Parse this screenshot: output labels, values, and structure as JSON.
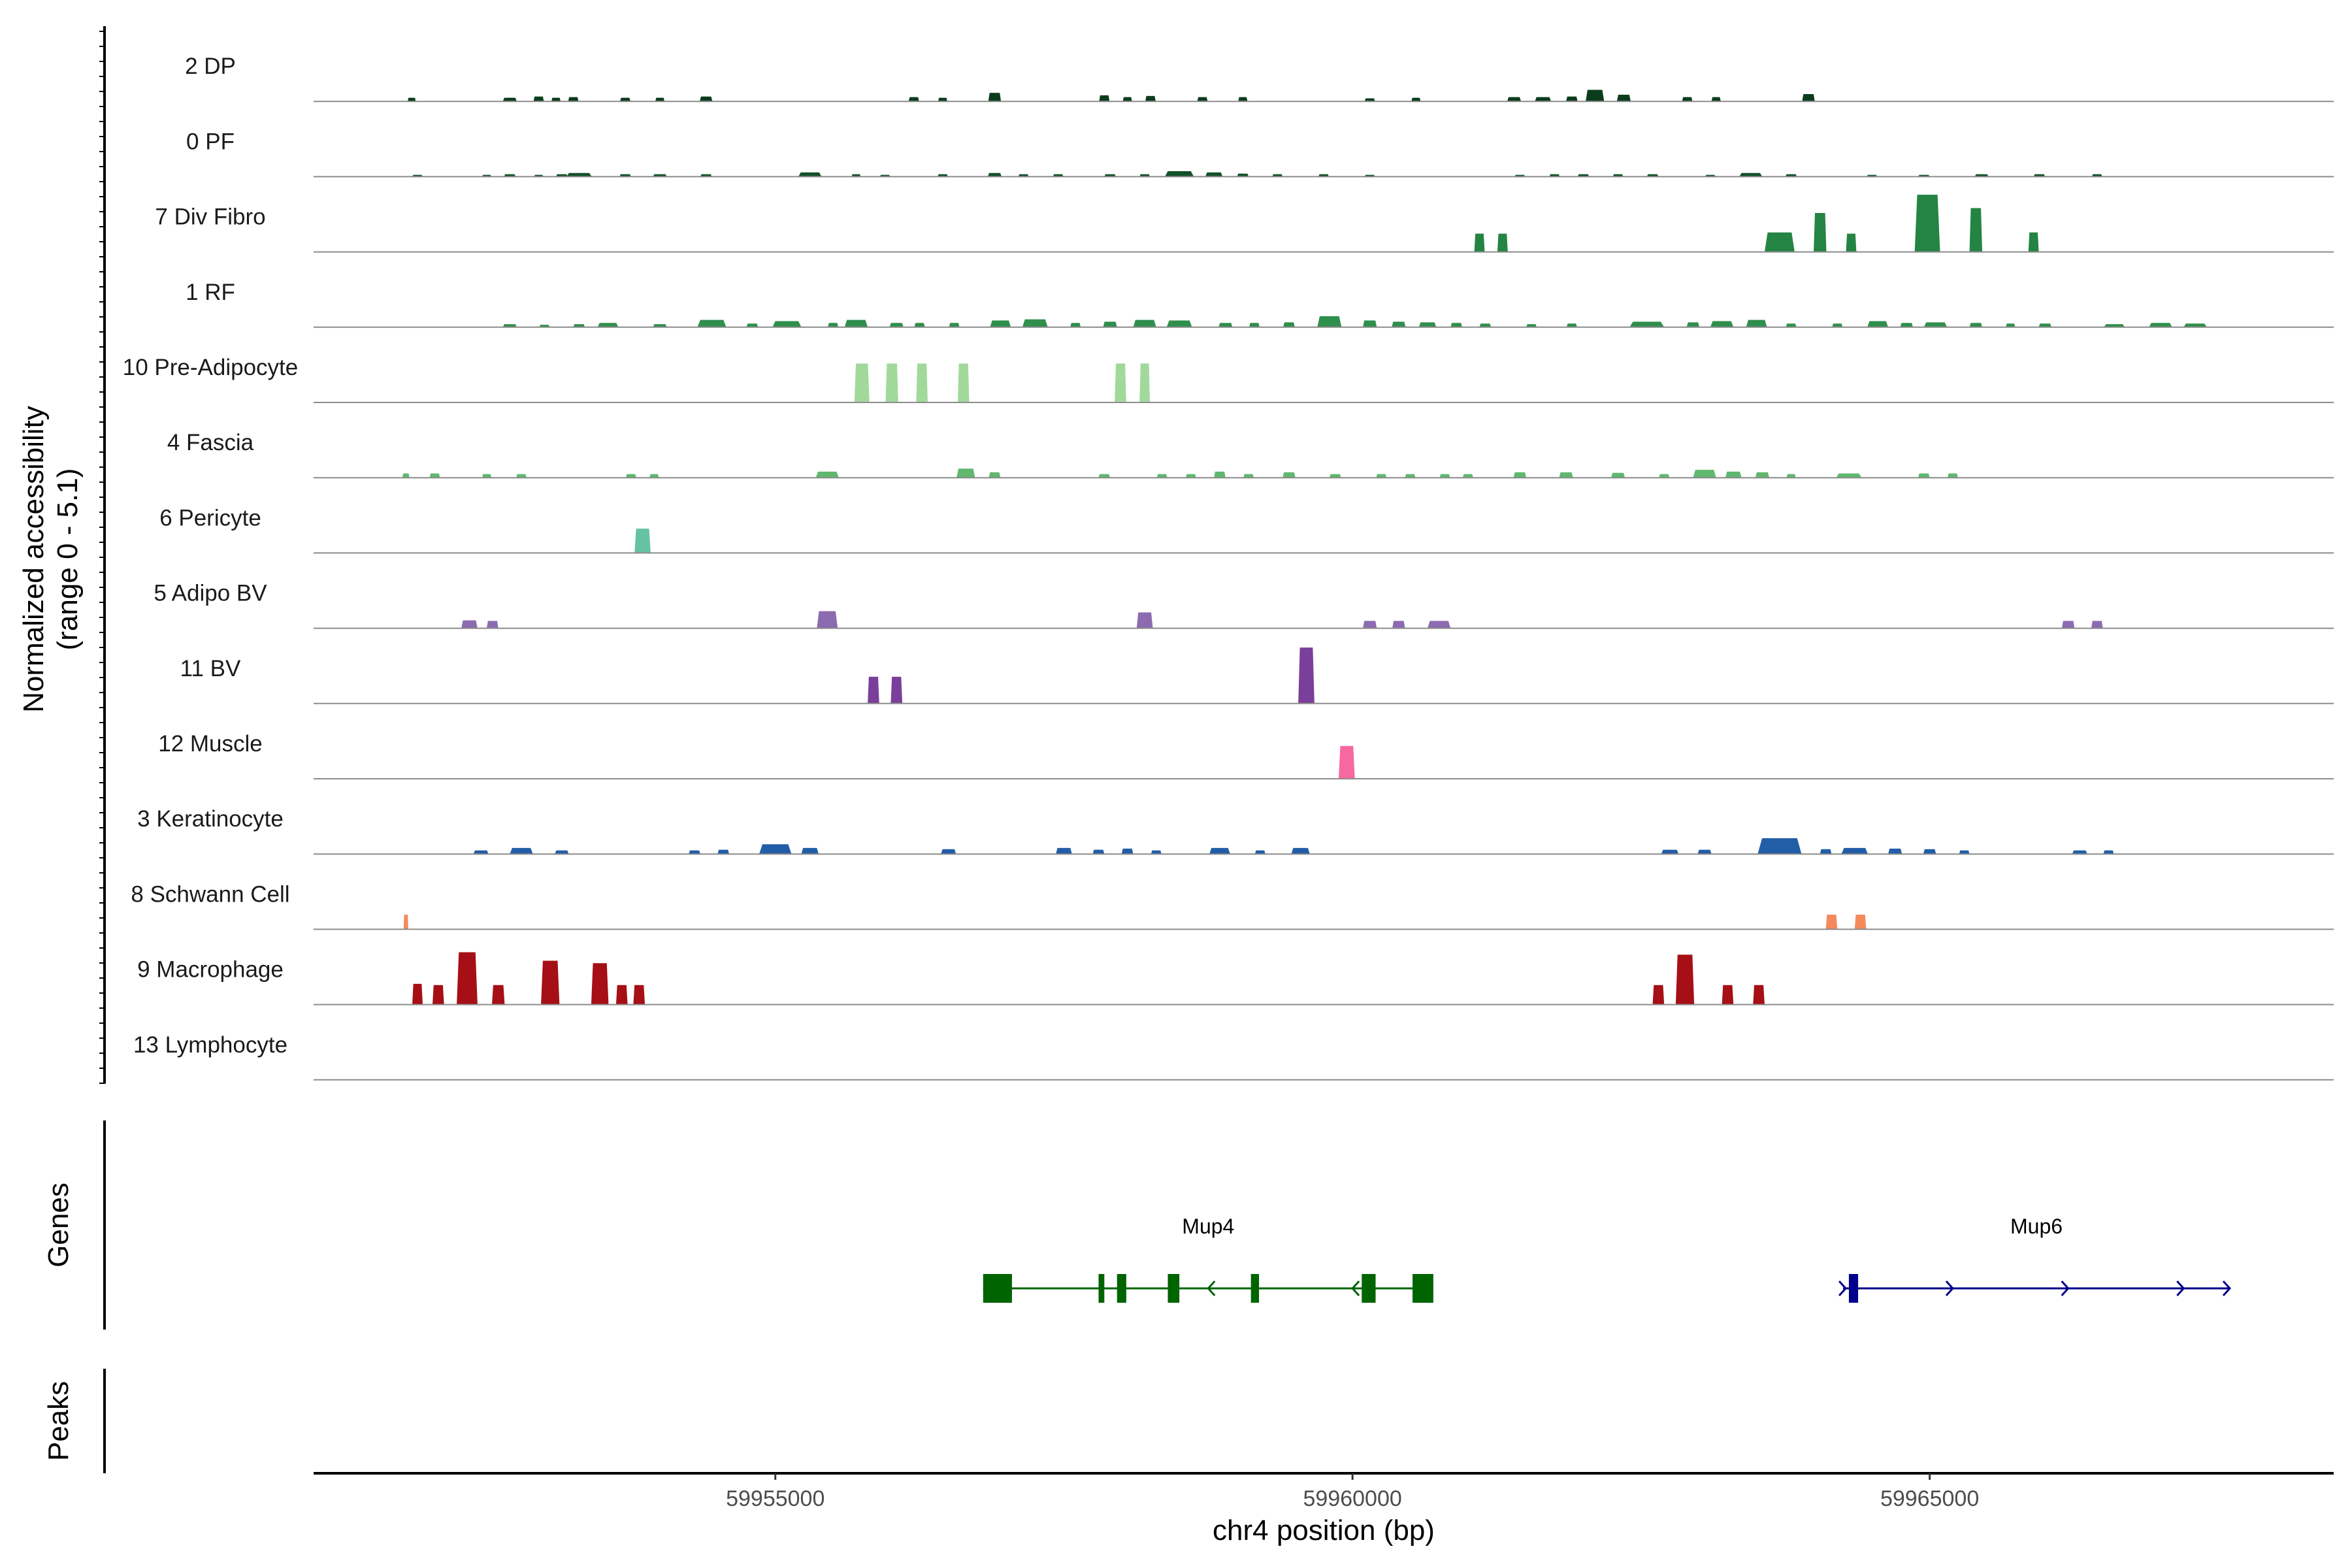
{
  "chart_data": {
    "type": "area",
    "title": "",
    "ylabel_line1": "Normalized accessibility",
    "ylabel_line2": "(range 0 - 5.1)",
    "xlabel": "chr4 position (bp)",
    "y_range": [
      0,
      5.1
    ],
    "x_range": [
      59951000,
      59968500
    ],
    "x_ticks": [
      59955000,
      59960000,
      59965000
    ],
    "x_tick_labels": [
      "59955000",
      "59960000",
      "59965000"
    ],
    "track_titles": {
      "genes": "Genes",
      "peaks": "Peaks"
    },
    "tracks": [
      {
        "name": "2 DP",
        "color": "#0b3d1c",
        "peaks": [
          [
            59951850,
            70,
            0.3
          ],
          [
            59952700,
            120,
            0.3
          ],
          [
            59952950,
            90,
            0.4
          ],
          [
            59953100,
            80,
            0.3
          ],
          [
            59953250,
            90,
            0.35
          ],
          [
            59953700,
            90,
            0.3
          ],
          [
            59954000,
            80,
            0.3
          ],
          [
            59954400,
            110,
            0.4
          ],
          [
            59956200,
            90,
            0.35
          ],
          [
            59956450,
            80,
            0.3
          ],
          [
            59956900,
            110,
            0.7
          ],
          [
            59957850,
            90,
            0.5
          ],
          [
            59958050,
            80,
            0.35
          ],
          [
            59958250,
            90,
            0.45
          ],
          [
            59958700,
            90,
            0.35
          ],
          [
            59959050,
            80,
            0.35
          ],
          [
            59960150,
            90,
            0.25
          ],
          [
            59960550,
            80,
            0.3
          ],
          [
            59961400,
            120,
            0.35
          ],
          [
            59961650,
            140,
            0.35
          ],
          [
            59961900,
            100,
            0.4
          ],
          [
            59962100,
            160,
            0.95
          ],
          [
            59962350,
            120,
            0.55
          ],
          [
            59962900,
            90,
            0.35
          ],
          [
            59963150,
            80,
            0.35
          ],
          [
            59963950,
            110,
            0.6
          ]
        ]
      },
      {
        "name": "0 PF",
        "color": "#14502a",
        "peaks": [
          [
            59951900,
            90,
            0.15
          ],
          [
            59952500,
            80,
            0.15
          ],
          [
            59952700,
            100,
            0.2
          ],
          [
            59952950,
            80,
            0.15
          ],
          [
            59953150,
            100,
            0.2
          ],
          [
            59953300,
            220,
            0.3
          ],
          [
            59953700,
            100,
            0.2
          ],
          [
            59954000,
            120,
            0.2
          ],
          [
            59954400,
            100,
            0.2
          ],
          [
            59955300,
            200,
            0.35
          ],
          [
            59955700,
            80,
            0.2
          ],
          [
            59955950,
            90,
            0.15
          ],
          [
            59956450,
            90,
            0.2
          ],
          [
            59956900,
            120,
            0.3
          ],
          [
            59957150,
            90,
            0.2
          ],
          [
            59957450,
            90,
            0.2
          ],
          [
            59957900,
            100,
            0.2
          ],
          [
            59958200,
            90,
            0.2
          ],
          [
            59958500,
            250,
            0.45
          ],
          [
            59958800,
            150,
            0.35
          ],
          [
            59959050,
            100,
            0.25
          ],
          [
            59959350,
            90,
            0.2
          ],
          [
            59959750,
            90,
            0.2
          ],
          [
            59960150,
            90,
            0.15
          ],
          [
            59961450,
            90,
            0.15
          ],
          [
            59961750,
            90,
            0.2
          ],
          [
            59962000,
            100,
            0.2
          ],
          [
            59962300,
            90,
            0.2
          ],
          [
            59962600,
            100,
            0.2
          ],
          [
            59963100,
            90,
            0.15
          ],
          [
            59963450,
            200,
            0.3
          ],
          [
            59963800,
            100,
            0.2
          ],
          [
            59964500,
            90,
            0.15
          ],
          [
            59964950,
            100,
            0.15
          ],
          [
            59965450,
            120,
            0.2
          ],
          [
            59965950,
            100,
            0.2
          ],
          [
            59966450,
            90,
            0.2
          ]
        ]
      },
      {
        "name": "7 Div Fibro",
        "color": "#238443",
        "peaks": [
          [
            59961100,
            90,
            1.5
          ],
          [
            59961300,
            90,
            1.5
          ],
          [
            59963700,
            260,
            1.6
          ],
          [
            59964050,
            110,
            3.2
          ],
          [
            59964320,
            90,
            1.5
          ],
          [
            59964980,
            220,
            4.7
          ],
          [
            59965400,
            110,
            3.6
          ],
          [
            59965900,
            90,
            1.6
          ]
        ]
      },
      {
        "name": "1 RF",
        "color": "#2f8f4c",
        "peaks": [
          [
            59952700,
            120,
            0.25
          ],
          [
            59953000,
            90,
            0.2
          ],
          [
            59953300,
            100,
            0.25
          ],
          [
            59953550,
            180,
            0.35
          ],
          [
            59954000,
            120,
            0.25
          ],
          [
            59954450,
            250,
            0.6
          ],
          [
            59954800,
            100,
            0.3
          ],
          [
            59955100,
            250,
            0.5
          ],
          [
            59955500,
            90,
            0.35
          ],
          [
            59955700,
            200,
            0.6
          ],
          [
            59956050,
            120,
            0.35
          ],
          [
            59956250,
            90,
            0.35
          ],
          [
            59956550,
            90,
            0.35
          ],
          [
            59956950,
            180,
            0.55
          ],
          [
            59957250,
            220,
            0.65
          ],
          [
            59957600,
            90,
            0.35
          ],
          [
            59957900,
            120,
            0.45
          ],
          [
            59958200,
            200,
            0.6
          ],
          [
            59958500,
            220,
            0.55
          ],
          [
            59958900,
            120,
            0.35
          ],
          [
            59959150,
            90,
            0.35
          ],
          [
            59959450,
            100,
            0.4
          ],
          [
            59959800,
            210,
            0.9
          ],
          [
            59960150,
            120,
            0.55
          ],
          [
            59960400,
            120,
            0.45
          ],
          [
            59960650,
            150,
            0.4
          ],
          [
            59960900,
            100,
            0.35
          ],
          [
            59961150,
            100,
            0.3
          ],
          [
            59961550,
            90,
            0.25
          ],
          [
            59961900,
            90,
            0.3
          ],
          [
            59962550,
            300,
            0.45
          ],
          [
            59962950,
            110,
            0.4
          ],
          [
            59963200,
            200,
            0.5
          ],
          [
            59963500,
            180,
            0.6
          ],
          [
            59963800,
            90,
            0.3
          ],
          [
            59964200,
            90,
            0.3
          ],
          [
            59964550,
            180,
            0.5
          ],
          [
            59964800,
            110,
            0.35
          ],
          [
            59965050,
            200,
            0.4
          ],
          [
            59965400,
            110,
            0.35
          ],
          [
            59965700,
            80,
            0.3
          ],
          [
            59966000,
            110,
            0.3
          ],
          [
            59966600,
            180,
            0.25
          ],
          [
            59967000,
            200,
            0.35
          ],
          [
            59967300,
            200,
            0.3
          ]
        ]
      },
      {
        "name": "10 Pre-Adipocyte",
        "color": "#a1d99b",
        "peaks": [
          [
            59955750,
            130,
            3.2
          ],
          [
            59956010,
            110,
            3.2
          ],
          [
            59956270,
            100,
            3.2
          ],
          [
            59956630,
            100,
            3.2
          ],
          [
            59957990,
            100,
            3.2
          ],
          [
            59958200,
            90,
            3.2
          ]
        ]
      },
      {
        "name": "4 Fascia",
        "color": "#5fb86e",
        "peaks": [
          [
            59951800,
            60,
            0.35
          ],
          [
            59952050,
            90,
            0.35
          ],
          [
            59952500,
            80,
            0.3
          ],
          [
            59952800,
            90,
            0.3
          ],
          [
            59953750,
            90,
            0.3
          ],
          [
            59953950,
            80,
            0.3
          ],
          [
            59955450,
            200,
            0.5
          ],
          [
            59956650,
            160,
            0.75
          ],
          [
            59956900,
            100,
            0.45
          ],
          [
            59957850,
            100,
            0.3
          ],
          [
            59958350,
            90,
            0.3
          ],
          [
            59958600,
            90,
            0.3
          ],
          [
            59958850,
            100,
            0.5
          ],
          [
            59959100,
            90,
            0.3
          ],
          [
            59959450,
            110,
            0.45
          ],
          [
            59959850,
            100,
            0.3
          ],
          [
            59960250,
            90,
            0.3
          ],
          [
            59960500,
            90,
            0.3
          ],
          [
            59960800,
            90,
            0.3
          ],
          [
            59961000,
            90,
            0.3
          ],
          [
            59961450,
            110,
            0.45
          ],
          [
            59961850,
            120,
            0.45
          ],
          [
            59962300,
            120,
            0.4
          ],
          [
            59962700,
            90,
            0.3
          ],
          [
            59963050,
            200,
            0.65
          ],
          [
            59963300,
            140,
            0.5
          ],
          [
            59963550,
            120,
            0.45
          ],
          [
            59963800,
            80,
            0.3
          ],
          [
            59964300,
            220,
            0.35
          ],
          [
            59964950,
            100,
            0.35
          ],
          [
            59965200,
            90,
            0.35
          ]
        ]
      },
      {
        "name": "6 Pericyte",
        "color": "#66c2a4",
        "peaks": [
          [
            59953850,
            140,
            2.0
          ]
        ]
      },
      {
        "name": "5 Adipo BV",
        "color": "#8c6bb1",
        "peaks": [
          [
            59952350,
            140,
            0.65
          ],
          [
            59952550,
            100,
            0.6
          ],
          [
            59955450,
            180,
            1.4
          ],
          [
            59958200,
            140,
            1.3
          ],
          [
            59960150,
            120,
            0.6
          ],
          [
            59960400,
            110,
            0.6
          ],
          [
            59960750,
            200,
            0.6
          ],
          [
            59966200,
            110,
            0.6
          ],
          [
            59966450,
            100,
            0.6
          ]
        ]
      },
      {
        "name": "11 BV",
        "color": "#7a3f9a",
        "peaks": [
          [
            59955850,
            100,
            2.2
          ],
          [
            59956050,
            100,
            2.2
          ],
          [
            59959600,
            140,
            4.6
          ]
        ]
      },
      {
        "name": "12 Muscle",
        "color": "#f768a1",
        "peaks": [
          [
            59959950,
            140,
            2.7
          ]
        ]
      },
      {
        "name": "3 Keratinocyte",
        "color": "#225ea8",
        "peaks": [
          [
            59952450,
            130,
            0.3
          ],
          [
            59952800,
            200,
            0.5
          ],
          [
            59953150,
            120,
            0.3
          ],
          [
            59954300,
            100,
            0.3
          ],
          [
            59954550,
            100,
            0.35
          ],
          [
            59955000,
            280,
            0.8
          ],
          [
            59955300,
            150,
            0.5
          ],
          [
            59956500,
            130,
            0.4
          ],
          [
            59957500,
            140,
            0.5
          ],
          [
            59957800,
            100,
            0.35
          ],
          [
            59958050,
            100,
            0.45
          ],
          [
            59958300,
            90,
            0.3
          ],
          [
            59958850,
            180,
            0.5
          ],
          [
            59959200,
            90,
            0.3
          ],
          [
            59959550,
            160,
            0.5
          ],
          [
            59962750,
            150,
            0.35
          ],
          [
            59963050,
            120,
            0.35
          ],
          [
            59963700,
            380,
            1.3
          ],
          [
            59964100,
            100,
            0.4
          ],
          [
            59964350,
            230,
            0.5
          ],
          [
            59964700,
            120,
            0.45
          ],
          [
            59965000,
            110,
            0.4
          ],
          [
            59965300,
            90,
            0.3
          ],
          [
            59966300,
            130,
            0.3
          ],
          [
            59966550,
            90,
            0.3
          ]
        ]
      },
      {
        "name": "8 Schwann Cell",
        "color": "#f4895c",
        "peaks": [
          [
            59951800,
            40,
            1.2
          ],
          [
            59964150,
            100,
            1.2
          ],
          [
            59964400,
            100,
            1.2
          ]
        ]
      },
      {
        "name": "9 Macrophage",
        "color": "#a50f15",
        "peaks": [
          [
            59951900,
            90,
            1.7
          ],
          [
            59952080,
            100,
            1.6
          ],
          [
            59952330,
            180,
            4.3
          ],
          [
            59952600,
            110,
            1.6
          ],
          [
            59953050,
            160,
            3.6
          ],
          [
            59953480,
            150,
            3.4
          ],
          [
            59953670,
            100,
            1.6
          ],
          [
            59953820,
            100,
            1.6
          ],
          [
            59962650,
            100,
            1.6
          ],
          [
            59962880,
            160,
            4.1
          ],
          [
            59963250,
            100,
            1.6
          ],
          [
            59963520,
            100,
            1.6
          ]
        ]
      },
      {
        "name": "13 Lymphocyte",
        "color": "#4d4d4d",
        "peaks": []
      }
    ],
    "genes": [
      {
        "name": "Mup4",
        "color": "#006400",
        "strand": "-",
        "start": 59956800,
        "end": 59960700,
        "exons": [
          [
            59956800,
            59957050
          ],
          [
            59957800,
            59957850
          ],
          [
            59957960,
            59958040
          ],
          [
            59958400,
            59958500
          ],
          [
            59959120,
            59959190
          ],
          [
            59960080,
            59960200
          ],
          [
            59960520,
            59960700
          ]
        ],
        "arrows": [
          59958750,
          59960000
        ]
      },
      {
        "name": "Mup6",
        "color": "#00008b",
        "strand": "+",
        "start": 59964250,
        "end": 59967600,
        "exons": [
          [
            59964300,
            59964380
          ]
        ],
        "arrows": [
          59965200,
          59966200,
          59967200,
          59967600
        ]
      }
    ]
  }
}
